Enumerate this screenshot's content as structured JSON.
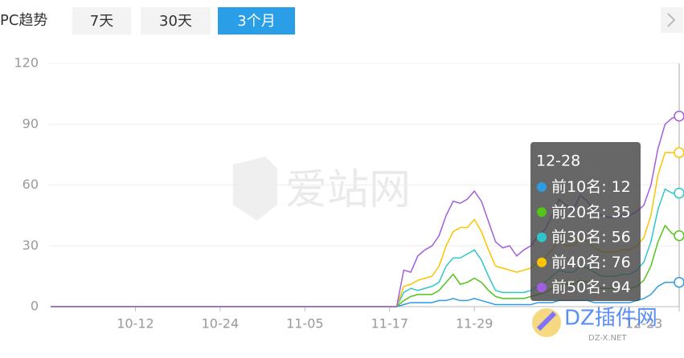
{
  "header": {
    "label": "PC趋势",
    "buttons": [
      "7天",
      "30天",
      "3个月"
    ],
    "active": 2
  },
  "watermarks": {
    "site": "爱站网",
    "dz": "DZ插件网",
    "dz_url": "DZ-X.NET"
  },
  "tooltip": {
    "separator": ":",
    "index": 89
  },
  "chart_data": {
    "type": "line",
    "categories": [
      null,
      null,
      null,
      null,
      null,
      null,
      null,
      null,
      null,
      null,
      null,
      null,
      "10-12",
      null,
      null,
      null,
      null,
      null,
      null,
      null,
      null,
      null,
      null,
      null,
      "10-24",
      null,
      null,
      null,
      null,
      null,
      null,
      null,
      null,
      null,
      null,
      null,
      "11-05",
      null,
      null,
      null,
      null,
      null,
      null,
      null,
      null,
      null,
      null,
      null,
      "11-17",
      null,
      null,
      null,
      null,
      null,
      null,
      null,
      null,
      null,
      null,
      null,
      "11-29",
      null,
      null,
      null,
      null,
      null,
      null,
      null,
      null,
      null,
      null,
      null,
      null,
      null,
      null,
      null,
      null,
      null,
      null,
      null,
      null,
      null,
      null,
      null,
      "12-23",
      null,
      null,
      null,
      null,
      "12-28"
    ],
    "ylim": [
      0,
      120
    ],
    "yticks": [
      0,
      30,
      60,
      90,
      120
    ],
    "grid": true,
    "series": [
      {
        "name": "前10名",
        "color": "#2f9be3",
        "values": [
          0,
          0,
          0,
          0,
          0,
          0,
          0,
          0,
          0,
          0,
          0,
          0,
          0,
          0,
          0,
          0,
          0,
          0,
          0,
          0,
          0,
          0,
          0,
          0,
          0,
          0,
          0,
          0,
          0,
          0,
          0,
          0,
          0,
          0,
          0,
          0,
          0,
          0,
          0,
          0,
          0,
          0,
          0,
          0,
          0,
          0,
          0,
          0,
          0,
          0,
          1,
          2,
          2,
          2,
          2,
          3,
          3,
          4,
          3,
          3,
          4,
          3,
          2,
          1,
          1,
          1,
          1,
          1,
          1,
          2,
          2,
          2,
          3,
          3,
          3,
          3,
          3,
          2,
          2,
          2,
          2,
          2,
          2,
          3,
          4,
          6,
          10,
          12,
          12,
          12
        ]
      },
      {
        "name": "前20名",
        "color": "#52c41a",
        "values": [
          0,
          0,
          0,
          0,
          0,
          0,
          0,
          0,
          0,
          0,
          0,
          0,
          0,
          0,
          0,
          0,
          0,
          0,
          0,
          0,
          0,
          0,
          0,
          0,
          0,
          0,
          0,
          0,
          0,
          0,
          0,
          0,
          0,
          0,
          0,
          0,
          0,
          0,
          0,
          0,
          0,
          0,
          0,
          0,
          0,
          0,
          0,
          0,
          0,
          0,
          3,
          5,
          6,
          6,
          6,
          8,
          12,
          16,
          11,
          12,
          14,
          12,
          8,
          5,
          4,
          4,
          4,
          4,
          5,
          6,
          7,
          9,
          12,
          11,
          11,
          13,
          12,
          10,
          9,
          9,
          9,
          9,
          9,
          10,
          13,
          20,
          32,
          40,
          36,
          35
        ]
      },
      {
        "name": "前30名",
        "color": "#2ec7c9",
        "values": [
          0,
          0,
          0,
          0,
          0,
          0,
          0,
          0,
          0,
          0,
          0,
          0,
          0,
          0,
          0,
          0,
          0,
          0,
          0,
          0,
          0,
          0,
          0,
          0,
          0,
          0,
          0,
          0,
          0,
          0,
          0,
          0,
          0,
          0,
          0,
          0,
          0,
          0,
          0,
          0,
          0,
          0,
          0,
          0,
          0,
          0,
          0,
          0,
          0,
          0,
          7,
          9,
          8,
          9,
          10,
          12,
          20,
          24,
          24,
          26,
          28,
          23,
          15,
          8,
          7,
          7,
          7,
          7,
          8,
          10,
          12,
          15,
          18,
          17,
          17,
          20,
          19,
          17,
          15,
          15,
          15,
          16,
          16,
          18,
          22,
          32,
          48,
          58,
          56,
          56
        ]
      },
      {
        "name": "前40名",
        "color": "#fcc400",
        "values": [
          0,
          0,
          0,
          0,
          0,
          0,
          0,
          0,
          0,
          0,
          0,
          0,
          0,
          0,
          0,
          0,
          0,
          0,
          0,
          0,
          0,
          0,
          0,
          0,
          0,
          0,
          0,
          0,
          0,
          0,
          0,
          0,
          0,
          0,
          0,
          0,
          0,
          0,
          0,
          0,
          0,
          0,
          0,
          0,
          0,
          0,
          0,
          0,
          0,
          0,
          10,
          11,
          13,
          14,
          15,
          20,
          30,
          37,
          39,
          39,
          43,
          37,
          28,
          20,
          19,
          18,
          17,
          18,
          19,
          22,
          24,
          28,
          33,
          30,
          30,
          34,
          32,
          29,
          27,
          27,
          27,
          28,
          28,
          30,
          34,
          45,
          65,
          76,
          76,
          76
        ]
      },
      {
        "name": "前50名",
        "color": "#a15ee0",
        "values": [
          0,
          0,
          0,
          0,
          0,
          0,
          0,
          0,
          0,
          0,
          0,
          0,
          0,
          0,
          0,
          0,
          0,
          0,
          0,
          0,
          0,
          0,
          0,
          0,
          0,
          0,
          0,
          0,
          0,
          0,
          0,
          0,
          0,
          0,
          0,
          0,
          0,
          0,
          0,
          0,
          0,
          0,
          0,
          0,
          0,
          0,
          0,
          0,
          0,
          0,
          18,
          17,
          25,
          28,
          30,
          35,
          45,
          52,
          51,
          53,
          57,
          52,
          42,
          32,
          29,
          30,
          25,
          28,
          30,
          35,
          38,
          45,
          53,
          50,
          48,
          55,
          52,
          47,
          45,
          44,
          44,
          45,
          45,
          47,
          50,
          60,
          78,
          90,
          93,
          94
        ]
      }
    ]
  }
}
